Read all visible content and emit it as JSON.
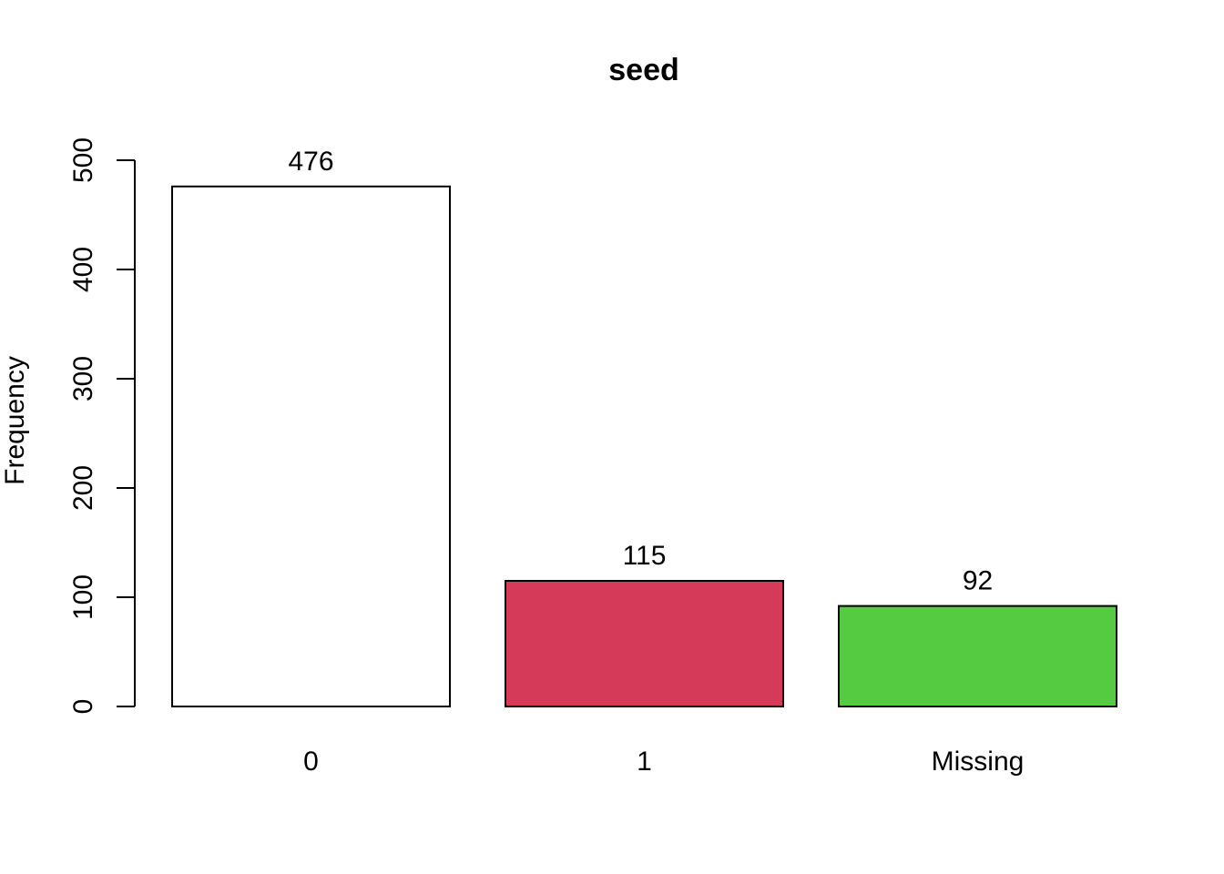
{
  "chart_data": {
    "type": "bar",
    "title": "seed",
    "xlabel": "",
    "ylabel": "Frequency",
    "categories": [
      "0",
      "1",
      "Missing"
    ],
    "values": [
      476,
      115,
      92
    ],
    "value_labels": [
      "476",
      "115",
      "92"
    ],
    "colors": [
      "#ffffff",
      "#d53a59",
      "#54cb41"
    ],
    "ylim": [
      0,
      500
    ],
    "yticks": [
      0,
      100,
      200,
      300,
      400,
      500
    ],
    "ytick_labels": [
      "0",
      "100",
      "200",
      "300",
      "400",
      "500"
    ],
    "grid": false,
    "legend": "none"
  }
}
